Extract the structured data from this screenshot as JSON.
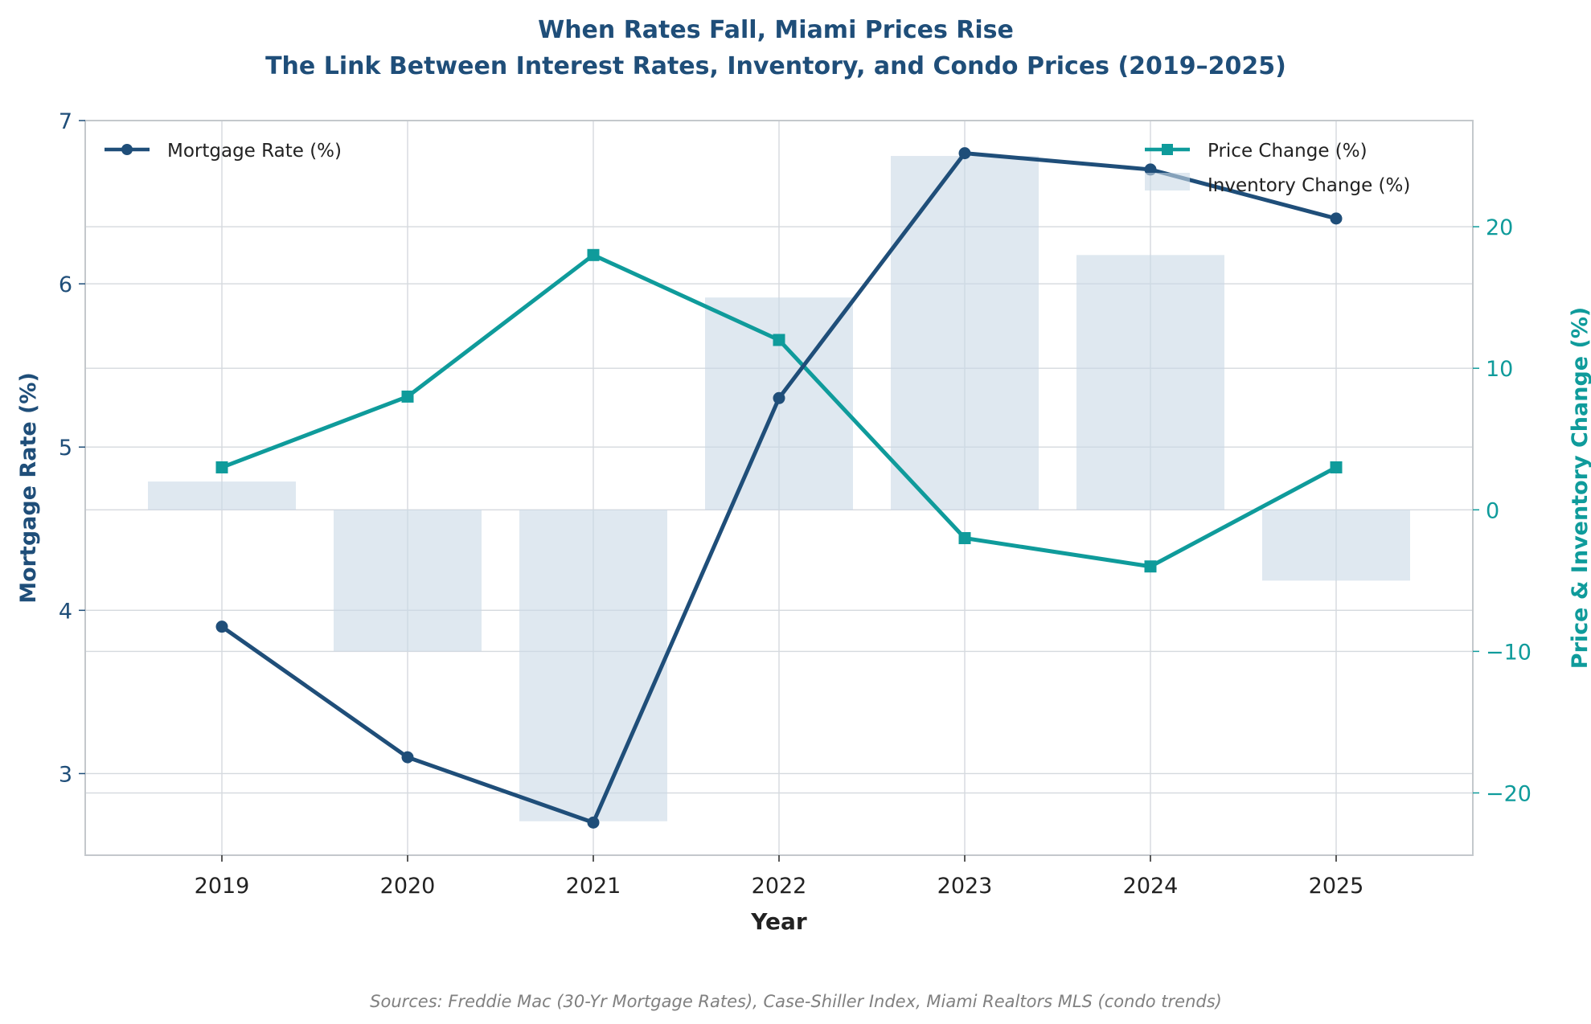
{
  "chart_data": {
    "type": "line+bar",
    "title": "When Rates Fall, Miami Prices Rise",
    "subtitle": "The Link Between Interest Rates, Inventory, and Condo Prices (2019–2025)",
    "xlabel": "Year",
    "ylabel_left": "Mortgage Rate (%)",
    "ylabel_right": "Price & Inventory Change (%)",
    "categories": [
      "2019",
      "2020",
      "2021",
      "2022",
      "2023",
      "2024",
      "2025"
    ],
    "ylim_left": [
      2.5,
      7.0
    ],
    "yticks_left": [
      3,
      4,
      5,
      6,
      7
    ],
    "ylim_right": [
      -24.4,
      27.5
    ],
    "yticks_right": [
      -20,
      -10,
      0,
      10,
      20
    ],
    "right_tick_labels": [
      "−20",
      "−10",
      "0",
      "10",
      "20"
    ],
    "series": [
      {
        "name": "Mortgage Rate (%)",
        "axis": "left",
        "kind": "line",
        "marker": "circle",
        "color": "#1f4e79",
        "values": [
          3.9,
          3.1,
          2.7,
          5.3,
          6.8,
          6.7,
          6.4
        ]
      },
      {
        "name": "Price Change (%)",
        "axis": "right",
        "kind": "line",
        "marker": "square",
        "color": "#0f9b9b",
        "values": [
          3,
          8,
          18,
          12,
          -2,
          -4,
          3
        ]
      },
      {
        "name": "Inventory Change (%)",
        "axis": "right",
        "kind": "bar",
        "color": "#c9d9e6",
        "values": [
          2,
          -10,
          -22,
          15,
          25,
          18,
          -5
        ]
      }
    ],
    "grid": true,
    "legend_left": "top-left",
    "legend_right": "top-right",
    "source": "Sources: Freddie Mac (30-Yr Mortgage Rates), Case-Shiller Index, Miami Realtors MLS (condo trends)"
  }
}
